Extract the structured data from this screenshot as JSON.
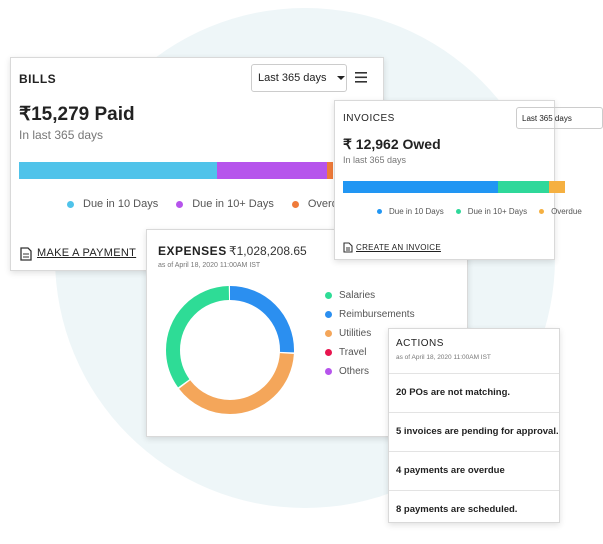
{
  "bills": {
    "title": "BILLS",
    "period_select": "Last 365 days",
    "amount": "₹15,279 Paid",
    "subtitle": "In last 365 days",
    "bar": [
      {
        "name": "Due in 10 Days",
        "color": "#4fc3ea",
        "value": 63
      },
      {
        "name": "Due in 10+ Days",
        "color": "#b654ec",
        "value": 35
      },
      {
        "name": "Overdue",
        "color": "#ef7b3a",
        "value": 2
      }
    ],
    "action": "MAKE A PAYMENT"
  },
  "invoices": {
    "title": "INVOICES",
    "period_select": "Last 365 days",
    "amount": "₹ 12,962 Owed",
    "subtitle": "In last 365 days",
    "bar": [
      {
        "name": "Due in 10 Days",
        "color": "#2196f3",
        "value": 70
      },
      {
        "name": "Due in 10+ Days",
        "color": "#2fd89a",
        "value": 23
      },
      {
        "name": "Overdue",
        "color": "#f5b041",
        "value": 7
      }
    ],
    "action": "CREATE AN INVOICE"
  },
  "expenses": {
    "title": "EXPENSES",
    "total": "₹1,028,208.65",
    "as_of": "as of April 18, 2020 11:00AM IST",
    "segments": [
      {
        "name": "Reimbursements",
        "color": "#2b8ff0",
        "value": 26
      },
      {
        "name": "Utilities",
        "color": "#f4a65a",
        "value": 39
      },
      {
        "name": "Travel",
        "color": "#e8154f",
        "value": 0
      },
      {
        "name": "Others",
        "color": "#b654ec",
        "value": 0
      },
      {
        "name": "Salaries",
        "color": "#2edc96",
        "value": 35
      }
    ],
    "legend_order": [
      4,
      0,
      1,
      2,
      3
    ]
  },
  "actions": {
    "title": "ACTIONS",
    "as_of": "as of April 18, 2020 11:00AM IST",
    "items": [
      "20 POs are not matching.",
      "5 invoices are pending for approval.",
      "4 payments are overdue",
      "8 payments are scheduled."
    ]
  }
}
